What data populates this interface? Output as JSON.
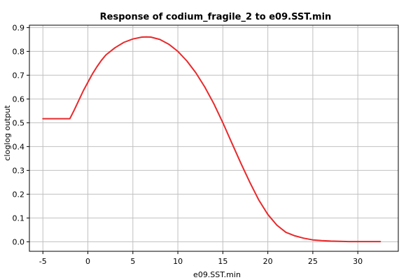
{
  "chart_data": {
    "type": "line",
    "title": "Response of codium_fragile_2 to e09.SST.min",
    "xlabel": "e09.SST.min",
    "ylabel": "cloglog output",
    "xlim": [
      -6.5,
      34.5
    ],
    "ylim": [
      -0.04,
      0.91
    ],
    "x_ticks": [
      -5,
      0,
      5,
      10,
      15,
      20,
      25,
      30
    ],
    "x_tick_labels": [
      "-5",
      "0",
      "5",
      "10",
      "15",
      "20",
      "25",
      "30"
    ],
    "y_ticks": [
      0.0,
      0.1,
      0.2,
      0.3,
      0.4,
      0.5,
      0.6,
      0.7,
      0.8,
      0.9
    ],
    "y_tick_labels": [
      "0.0",
      "0.1",
      "0.2",
      "0.3",
      "0.4",
      "0.5",
      "0.6",
      "0.7",
      "0.8",
      "0.9"
    ],
    "grid": true,
    "series": [
      {
        "name": "response",
        "color": "#e8292b",
        "x": [
          -5,
          -4,
          -3,
          -2,
          -1.5,
          -1,
          -0.5,
          0,
          0.5,
          1,
          1.5,
          2,
          3,
          4,
          5,
          6,
          6.5,
          7,
          8,
          9,
          10,
          11,
          12,
          13,
          14,
          15,
          16,
          17,
          18,
          19,
          20,
          21,
          22,
          23,
          24,
          25,
          26,
          27,
          28,
          29,
          30,
          31,
          32.5
        ],
        "y": [
          0.517,
          0.517,
          0.517,
          0.517,
          0.555,
          0.595,
          0.635,
          0.67,
          0.705,
          0.735,
          0.762,
          0.785,
          0.815,
          0.838,
          0.852,
          0.86,
          0.861,
          0.86,
          0.85,
          0.83,
          0.8,
          0.76,
          0.71,
          0.65,
          0.58,
          0.5,
          0.415,
          0.33,
          0.25,
          0.175,
          0.115,
          0.07,
          0.04,
          0.025,
          0.015,
          0.008,
          0.005,
          0.003,
          0.002,
          0.001,
          0.001,
          0.001,
          0.001
        ]
      }
    ]
  },
  "colors": {
    "background": "#ffffff",
    "grid": "#c0c0c0",
    "axis": "#000000",
    "line": "#e8292b"
  }
}
